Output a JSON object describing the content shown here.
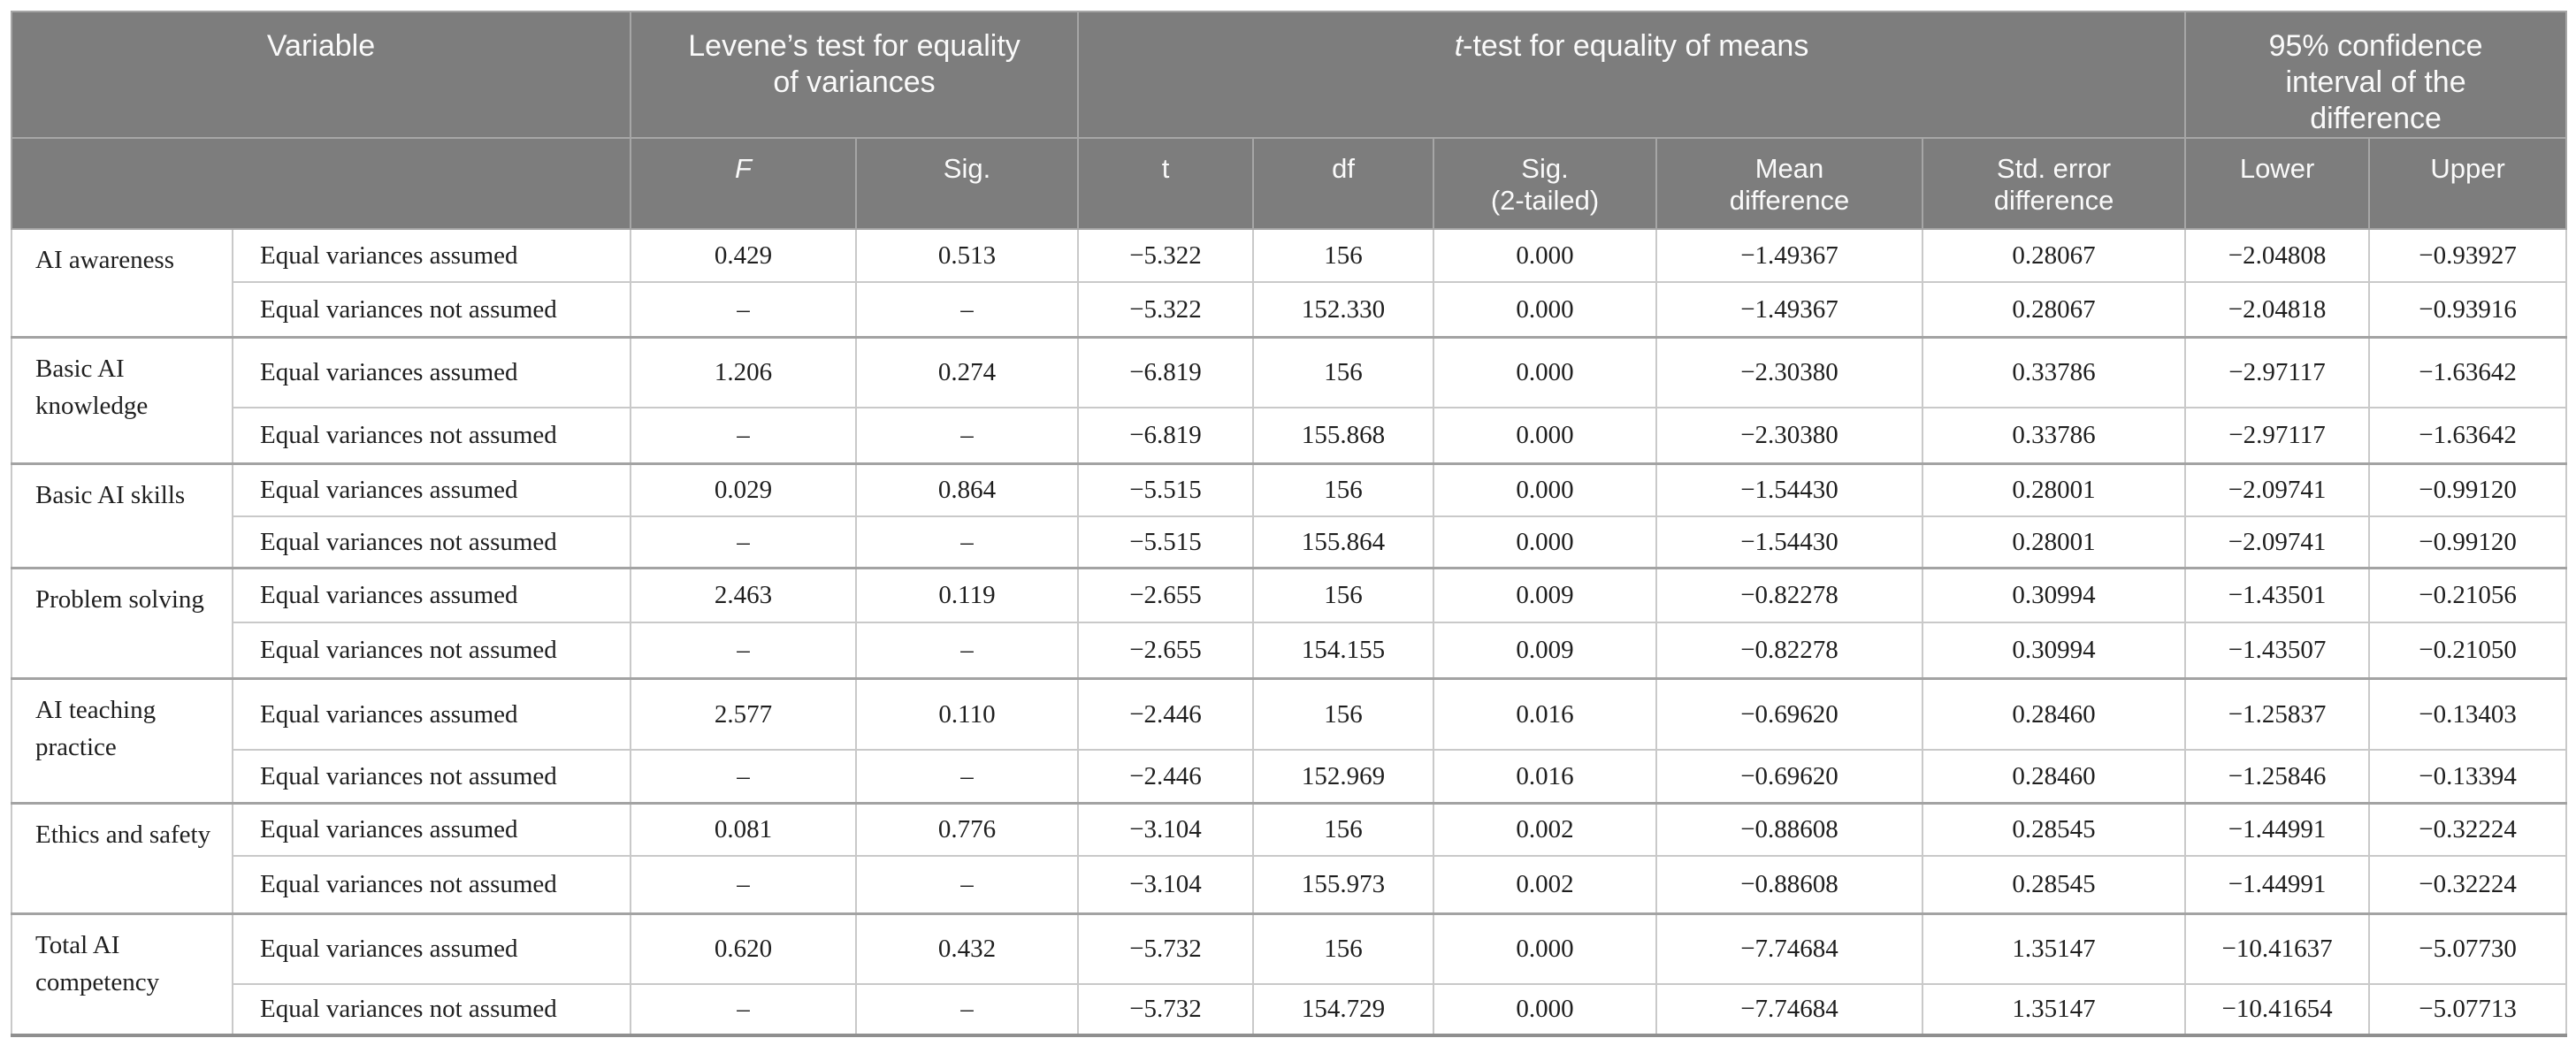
{
  "table": {
    "title_semantics": "Independent samples t-test results table",
    "columns": {
      "variable": "Variable",
      "levene_group": "Levene’s test for equality\nof variances",
      "ttest_group_t": "t",
      "ttest_group_rest": "-test for equality of means",
      "ci_group": "95% confidence\ninterval of the\ndifference",
      "f": "F",
      "sig": "Sig.",
      "t": "t",
      "df": "df",
      "sig_2tailed": "Sig.\n(2-tailed)",
      "mean_difference": "Mean\ndifference",
      "stderr_difference": "Std. error\ndifference",
      "lower": "Lower",
      "upper": "Upper"
    },
    "rows": [
      {
        "variable": "AI awareness",
        "sub": [
          [
            "Equal variances assumed",
            "0.429",
            "0.513",
            "−5.322",
            "156",
            "0.000",
            "−1.49367",
            "0.28067",
            "−2.04808",
            "−0.93927"
          ],
          [
            "Equal variances not assumed",
            "–",
            "–",
            "−5.322",
            "152.330",
            "0.000",
            "−1.49367",
            "0.28067",
            "−2.04818",
            "−0.93916"
          ]
        ]
      },
      {
        "variable": "Basic AI\nknowledge",
        "sub": [
          [
            "Equal variances assumed",
            "1.206",
            "0.274",
            "−6.819",
            "156",
            "0.000",
            "−2.30380",
            "0.33786",
            "−2.97117",
            "−1.63642"
          ],
          [
            "Equal variances not assumed",
            "–",
            "–",
            "−6.819",
            "155.868",
            "0.000",
            "−2.30380",
            "0.33786",
            "−2.97117",
            "−1.63642"
          ]
        ]
      },
      {
        "variable": "Basic AI skills",
        "sub": [
          [
            "Equal variances assumed",
            "0.029",
            "0.864",
            "−5.515",
            "156",
            "0.000",
            "−1.54430",
            "0.28001",
            "−2.09741",
            "−0.99120"
          ],
          [
            "Equal variances not assumed",
            "–",
            "–",
            "−5.515",
            "155.864",
            "0.000",
            "−1.54430",
            "0.28001",
            "−2.09741",
            "−0.99120"
          ]
        ]
      },
      {
        "variable": "Problem solving",
        "sub": [
          [
            "Equal variances assumed",
            "2.463",
            "0.119",
            "−2.655",
            "156",
            "0.009",
            "−0.82278",
            "0.30994",
            "−1.43501",
            "−0.21056"
          ],
          [
            "Equal variances not assumed",
            "–",
            "–",
            "−2.655",
            "154.155",
            "0.009",
            "−0.82278",
            "0.30994",
            "−1.43507",
            "−0.21050"
          ]
        ]
      },
      {
        "variable": "AI teaching\npractice",
        "sub": [
          [
            "Equal variances assumed",
            "2.577",
            "0.110",
            "−2.446",
            "156",
            "0.016",
            "−0.69620",
            "0.28460",
            "−1.25837",
            "−0.13403"
          ],
          [
            "Equal variances not assumed",
            "–",
            "–",
            "−2.446",
            "152.969",
            "0.016",
            "−0.69620",
            "0.28460",
            "−1.25846",
            "−0.13394"
          ]
        ]
      },
      {
        "variable": "Ethics and safety",
        "sub": [
          [
            "Equal variances assumed",
            "0.081",
            "0.776",
            "−3.104",
            "156",
            "0.002",
            "−0.88608",
            "0.28545",
            "−1.44991",
            "−0.32224"
          ],
          [
            "Equal variances not assumed",
            "–",
            "–",
            "−3.104",
            "155.973",
            "0.002",
            "−0.88608",
            "0.28545",
            "−1.44991",
            "−0.32224"
          ]
        ]
      },
      {
        "variable": "Total AI\ncompetency",
        "sub": [
          [
            "Equal variances assumed",
            "0.620",
            "0.432",
            "−5.732",
            "156",
            "0.000",
            "−7.74684",
            "1.35147",
            "−10.41637",
            "−5.07730"
          ],
          [
            "Equal variances not assumed",
            "–",
            "–",
            "−5.732",
            "154.729",
            "0.000",
            "−7.74684",
            "1.35147",
            "−10.41654",
            "−5.07713"
          ]
        ]
      }
    ]
  }
}
